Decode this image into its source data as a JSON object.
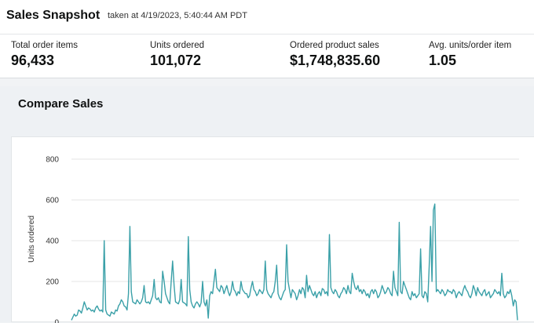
{
  "header": {
    "title": "Sales Snapshot",
    "taken_at": "taken at 4/19/2023, 5:40:44 AM PDT"
  },
  "metrics": [
    {
      "label": "Total order items",
      "value": "96,433"
    },
    {
      "label": "Units ordered",
      "value": "101,072"
    },
    {
      "label": "Ordered product sales",
      "value": "$1,748,835.60"
    },
    {
      "label": "Avg. units/order item",
      "value": "1.05"
    }
  ],
  "compare": {
    "title": "Compare Sales"
  },
  "colors": {
    "line": "#3aa0a8",
    "grid": "#e6e6e6"
  },
  "chart_data": {
    "type": "line",
    "ylabel": "Units ordered",
    "yticks": [
      0,
      200,
      400,
      600,
      800
    ],
    "ylim": [
      0,
      800
    ],
    "grid": true,
    "series": [
      {
        "values": [
          10,
          25,
          40,
          30,
          35,
          60,
          55,
          45,
          70,
          100,
          80,
          60,
          70,
          65,
          55,
          60,
          50,
          70,
          80,
          65,
          55,
          60,
          50,
          400,
          60,
          40,
          35,
          30,
          50,
          45,
          40,
          60,
          55,
          80,
          90,
          110,
          100,
          80,
          75,
          60,
          140,
          470,
          150,
          100,
          95,
          90,
          110,
          100,
          90,
          100,
          120,
          180,
          100,
          95,
          100,
          90,
          110,
          130,
          210,
          120,
          110,
          120,
          100,
          95,
          250,
          200,
          140,
          120,
          100,
          90,
          200,
          300,
          180,
          100,
          95,
          90,
          110,
          210,
          100,
          95,
          90,
          80,
          420,
          160,
          100,
          80,
          70,
          90,
          100,
          90,
          75,
          95,
          200,
          100,
          80,
          110,
          20,
          130,
          150,
          140,
          200,
          260,
          170,
          160,
          150,
          180,
          170,
          140,
          160,
          180,
          150,
          130,
          150,
          200,
          160,
          150,
          130,
          150,
          140,
          200,
          160,
          150,
          140,
          140,
          120,
          130,
          170,
          200,
          160,
          150,
          130,
          140,
          160,
          150,
          140,
          160,
          300,
          160,
          140,
          130,
          120,
          140,
          150,
          200,
          280,
          140,
          120,
          110,
          130,
          150,
          160,
          380,
          200,
          160,
          120,
          160,
          150,
          140,
          110,
          130,
          160,
          140,
          170,
          160,
          120,
          230,
          150,
          180,
          160,
          140,
          130,
          150,
          120,
          140,
          150,
          130,
          165,
          160,
          140,
          150,
          130,
          430,
          170,
          150,
          140,
          160,
          150,
          130,
          120,
          140,
          150,
          170,
          160,
          140,
          180,
          150,
          140,
          240,
          200,
          170,
          160,
          180,
          150,
          160,
          140,
          160,
          150,
          130,
          140,
          120,
          150,
          160,
          140,
          160,
          150,
          120,
          130,
          150,
          180,
          160,
          140,
          150,
          170,
          160,
          140,
          130,
          250,
          170,
          150,
          130,
          490,
          150,
          140,
          200,
          180,
          160,
          140,
          120,
          110,
          150,
          130,
          140,
          120,
          130,
          140,
          360,
          130,
          120,
          150,
          140,
          100,
          270,
          470,
          200,
          550,
          580,
          150,
          160,
          150,
          140,
          160,
          150,
          130,
          140,
          160,
          150,
          150,
          140,
          160,
          150,
          120,
          140,
          150,
          140,
          130,
          160,
          180,
          160,
          150,
          130,
          120,
          140,
          180,
          160,
          130,
          170,
          150,
          140,
          130,
          150,
          160,
          130,
          140,
          150,
          120,
          130,
          140,
          160,
          150,
          140,
          150,
          130,
          240,
          140,
          120,
          130,
          150,
          140,
          160,
          130,
          80,
          110,
          100,
          10
        ]
      }
    ]
  }
}
